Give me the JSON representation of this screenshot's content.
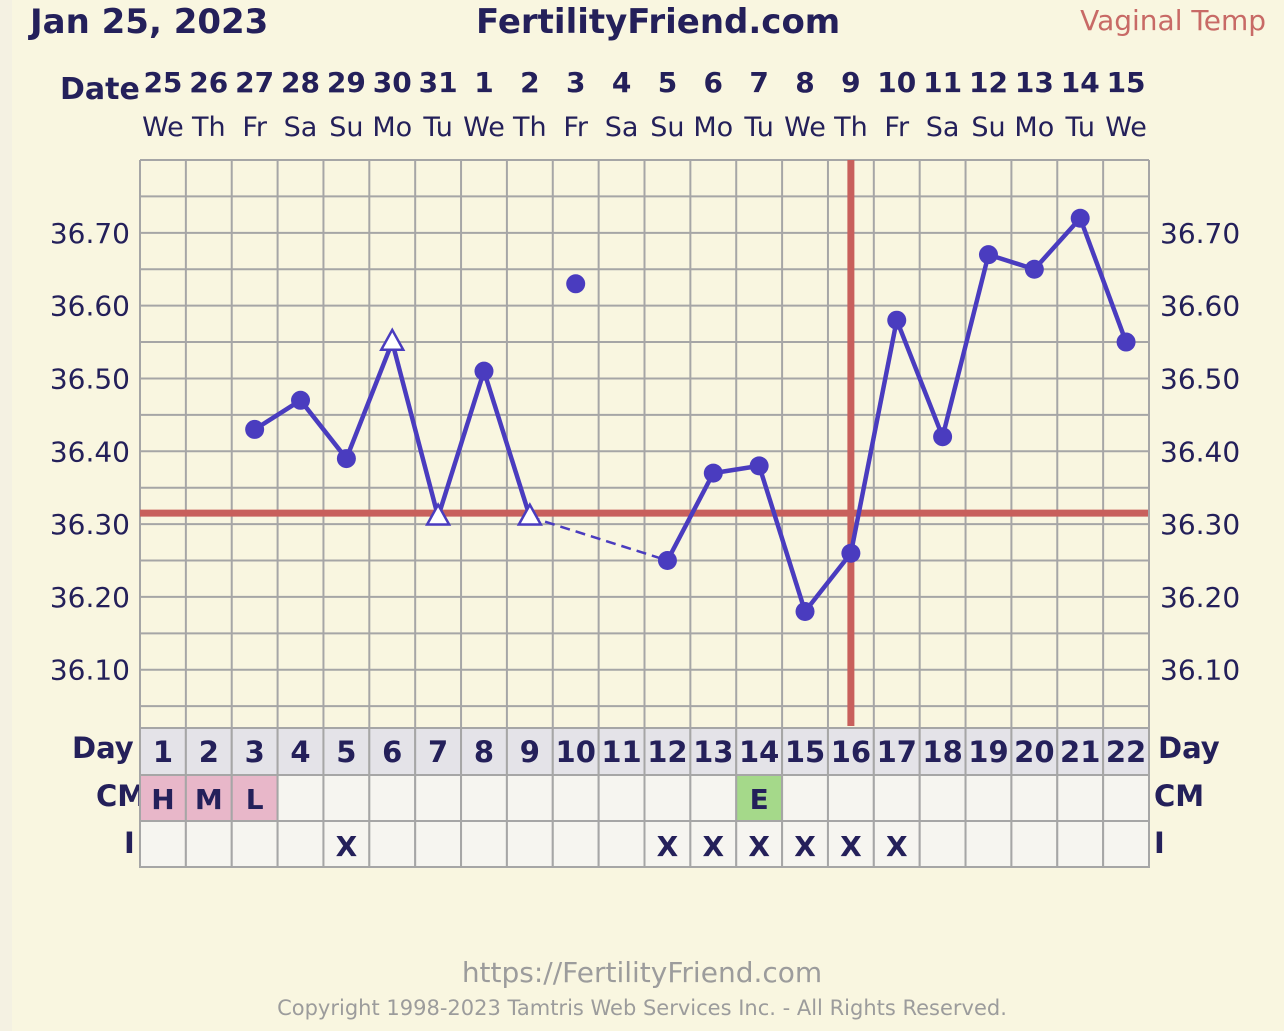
{
  "header": {
    "date": "Jan 25, 2023",
    "site": "FertilityFriend.com",
    "temp_type": "Vaginal Temp",
    "date_label": "Date"
  },
  "rows": {
    "day_label": "Day",
    "cm_label": "CM",
    "i_label": "I"
  },
  "footer": {
    "url": "https://FertilityFriend.com",
    "copyright": "Copyright 1998-2023 Tamtris Web Services Inc. - All Rights Reserved."
  },
  "colors": {
    "line": "#4a3cbf",
    "threshold": "#c8605c",
    "grid": "#a6a6a6",
    "cm_pink": "#e8b7c9",
    "cm_green": "#a5d98a"
  },
  "chart_data": {
    "type": "line",
    "dates": [
      "25",
      "26",
      "27",
      "28",
      "29",
      "30",
      "31",
      "1",
      "2",
      "3",
      "4",
      "5",
      "6",
      "7",
      "8",
      "9",
      "10",
      "11",
      "12",
      "13",
      "14",
      "15"
    ],
    "weekdays": [
      "We",
      "Th",
      "Fr",
      "Sa",
      "Su",
      "Mo",
      "Tu",
      "We",
      "Th",
      "Fr",
      "Sa",
      "Su",
      "Mo",
      "Tu",
      "We",
      "Th",
      "Fr",
      "Sa",
      "Su",
      "Mo",
      "Tu",
      "We"
    ],
    "days": [
      1,
      2,
      3,
      4,
      5,
      6,
      7,
      8,
      9,
      10,
      11,
      12,
      13,
      14,
      15,
      16,
      17,
      18,
      19,
      20,
      21,
      22
    ],
    "temps": [
      null,
      null,
      36.43,
      36.47,
      36.39,
      36.55,
      36.31,
      36.51,
      36.31,
      36.63,
      null,
      36.25,
      36.37,
      36.38,
      36.18,
      36.26,
      36.58,
      36.42,
      36.67,
      36.65,
      36.72,
      36.55
    ],
    "markers": [
      "",
      "",
      "dot",
      "dot",
      "dot",
      "triangle",
      "triangle",
      "dot",
      "triangle",
      "dot",
      "",
      "dot",
      "dot",
      "dot",
      "dot",
      "dot",
      "dot",
      "dot",
      "dot",
      "dot",
      "dot",
      "dot"
    ],
    "connected": [
      false,
      false,
      true,
      true,
      true,
      true,
      true,
      true,
      true,
      false,
      false,
      true,
      true,
      true,
      true,
      true,
      true,
      true,
      true,
      true,
      true,
      true
    ],
    "dashed_segment": [
      9,
      12
    ],
    "y_ticks": [
      "36.10",
      "36.20",
      "36.30",
      "36.40",
      "36.50",
      "36.60",
      "36.70"
    ],
    "ylim": [
      36.02,
      36.8
    ],
    "coverline": 36.315,
    "ovulation_day": 16,
    "cm": [
      "H",
      "M",
      "L",
      "",
      "",
      "",
      "",
      "",
      "",
      "",
      "",
      "",
      "",
      "E",
      "",
      "",
      "",
      "",
      "",
      "",
      "",
      ""
    ],
    "cm_colors": [
      "pink",
      "pink",
      "pink",
      "",
      "",
      "",
      "",
      "",
      "",
      "",
      "",
      "",
      "",
      "green",
      "",
      "",
      "",
      "",
      "",
      "",
      "",
      ""
    ],
    "intercourse": [
      "",
      "",
      "",
      "",
      "X",
      "",
      "",
      "",
      "",
      "",
      "",
      "X",
      "X",
      "X",
      "X",
      "X",
      "X",
      "",
      "",
      "",
      "",
      ""
    ]
  }
}
